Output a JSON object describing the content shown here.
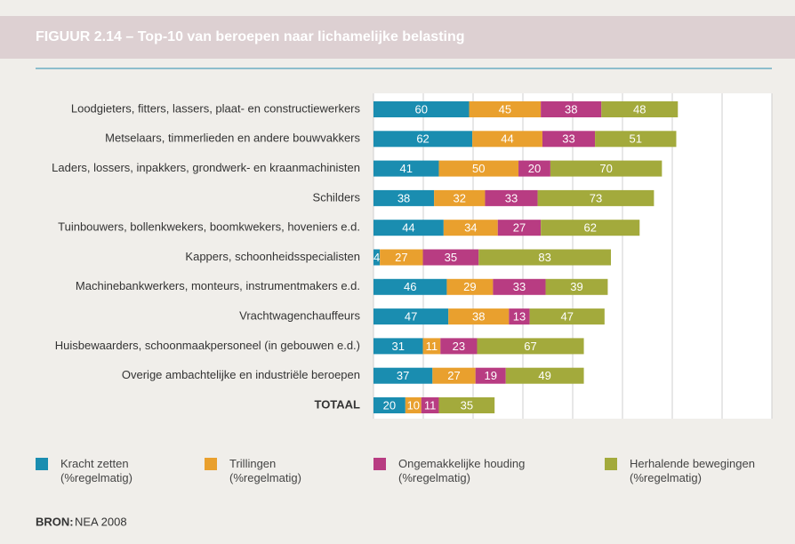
{
  "chart_data": {
    "type": "stacked-barh",
    "title": "FIGUUR 2.14  –  Top-10 van beroepen naar lichamelijke belasting",
    "categories": [
      "Loodgieters, fitters, lassers, plaat- en constructiewerkers",
      "Metselaars, timmerlieden en andere bouwvakkers",
      "Laders, lossers, inpakkers, grondwerk- en kraanmachinisten",
      "Schilders",
      "Tuinbouwers, bollenkwekers, boomkwekers, hoveniers e.d.",
      "Kappers, schoonheidsspecialisten",
      "Machinebankwerkers, monteurs, instrumentmakers e.d.",
      "Vrachtwagenchauffeurs",
      "Huisbewaarders, schoonmaakpersoneel (in gebouwen e.d.)",
      "Overige ambachtelijke en industriële beroepen",
      "TOTAAL"
    ],
    "series": [
      {
        "name": "Kracht zetten\n(%regelmatig)",
        "color": "#1a8db0",
        "values": [
          60,
          62,
          41,
          38,
          44,
          4,
          46,
          47,
          31,
          37,
          20
        ]
      },
      {
        "name": "Trillingen\n(%regelmatig)",
        "color": "#e9a02e",
        "values": [
          45,
          44,
          50,
          32,
          34,
          27,
          29,
          38,
          11,
          27,
          10
        ]
      },
      {
        "name": "Ongemakkelijke houding\n(%regelmatig)",
        "color": "#b83c82",
        "values": [
          38,
          33,
          20,
          33,
          27,
          35,
          33,
          13,
          23,
          19,
          11
        ]
      },
      {
        "name": "Herhalende bewegingen\n(%regelmatig)",
        "color": "#a3aa3c",
        "values": [
          48,
          51,
          70,
          73,
          62,
          83,
          39,
          47,
          67,
          49,
          35
        ]
      }
    ],
    "xlim": [
      0,
      250
    ],
    "xticks": [
      0,
      31.25,
      62.5,
      93.75,
      125,
      156.25,
      187.5,
      218.75,
      250
    ],
    "grid": true,
    "source_label": "BRON:",
    "source": "NEA 2008"
  }
}
